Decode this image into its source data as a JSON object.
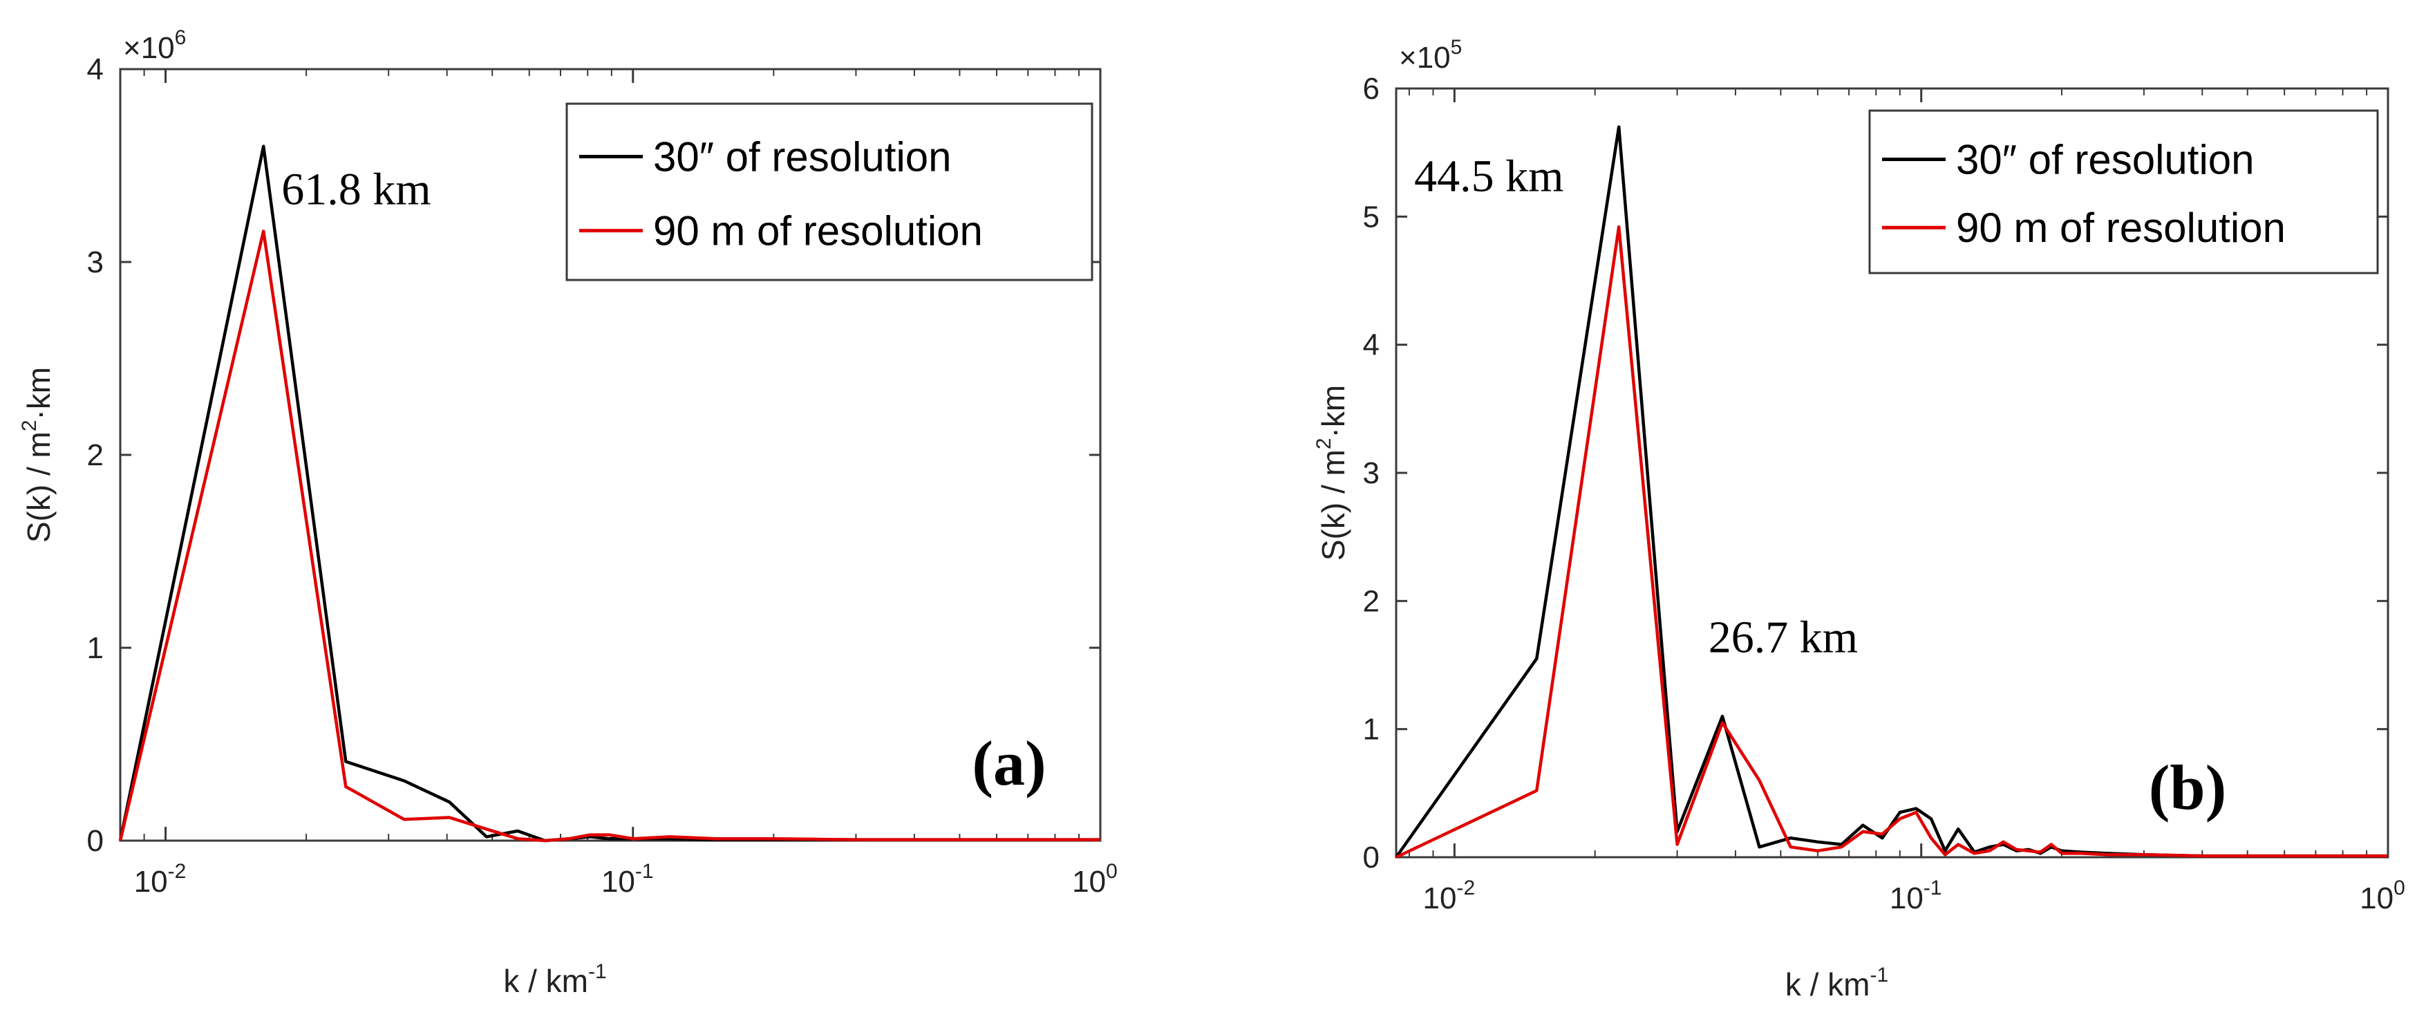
{
  "chart_data": [
    {
      "type": "line",
      "panel_label": "(a)",
      "xlabel": "k / km",
      "xlabel_sup": "-1",
      "ylabel": "S(k) / m",
      "ylabel_sup": "2",
      "ylabel_tail": "·km",
      "xscale": "log",
      "xlim": [
        0.008,
        1
      ],
      "ylim": [
        0,
        4
      ],
      "y_multiplier": "×10",
      "y_multiplier_exp": "6",
      "yticks": [
        0,
        1,
        2,
        3,
        4
      ],
      "yticklabels": [
        "0",
        "1",
        "2",
        "3",
        "4"
      ],
      "xticks": [
        0.01,
        0.1,
        1
      ],
      "xtick_base": [
        "10",
        "10",
        "10"
      ],
      "xtick_exp": [
        "-2",
        "-1",
        "0"
      ],
      "legend_position": "top-right",
      "series": [
        {
          "name": "30″ of resolution",
          "color": "#000000",
          "x": [
            0.008,
            0.0162,
            0.0243,
            0.0324,
            0.0405,
            0.0486,
            0.0567,
            0.0648,
            0.073,
            0.081,
            0.089,
            0.1,
            0.12,
            0.15,
            0.2,
            0.3,
            0.5,
            1
          ],
          "y": [
            0,
            3.6,
            0.41,
            0.31,
            0.2,
            0.02,
            0.05,
            0.0,
            0.01,
            0.02,
            0.01,
            0.01,
            0.01,
            0.005,
            0.005,
            0.005,
            0.005,
            0.005
          ]
        },
        {
          "name": "90 m of resolution",
          "color": "#e00000",
          "x": [
            0.008,
            0.0162,
            0.0243,
            0.0324,
            0.0405,
            0.0486,
            0.0567,
            0.0648,
            0.073,
            0.081,
            0.089,
            0.1,
            0.12,
            0.15,
            0.2,
            0.3,
            0.5,
            1
          ],
          "y": [
            0,
            3.16,
            0.28,
            0.11,
            0.12,
            0.06,
            0.01,
            0.0,
            0.01,
            0.03,
            0.03,
            0.01,
            0.02,
            0.01,
            0.01,
            0.005,
            0.005,
            0.005
          ]
        }
      ],
      "annotations": [
        {
          "text": "61.8 km",
          "x": 0.0177,
          "y": 3.3
        }
      ]
    },
    {
      "type": "line",
      "panel_label": "(b)",
      "xlabel": "k / km",
      "xlabel_sup": "-1",
      "ylabel": "S(k) / m",
      "ylabel_sup": "2",
      "ylabel_tail": "·km",
      "xscale": "log",
      "xlim": [
        0.0075,
        1
      ],
      "ylim": [
        0,
        6
      ],
      "y_multiplier": "×10",
      "y_multiplier_exp": "5",
      "yticks": [
        0,
        1,
        2,
        3,
        4,
        5,
        6
      ],
      "yticklabels": [
        "0",
        "1",
        "2",
        "3",
        "4",
        "5",
        "6"
      ],
      "xticks": [
        0.01,
        0.1,
        1
      ],
      "xtick_base": [
        "10",
        "10",
        "10"
      ],
      "xtick_exp": [
        "-2",
        "-1",
        "0"
      ],
      "legend_position": "top-right",
      "series": [
        {
          "name": "30″ of resolution",
          "color": "#000000",
          "x": [
            0.0075,
            0.015,
            0.0225,
            0.03,
            0.0375,
            0.045,
            0.0525,
            0.06,
            0.0675,
            0.075,
            0.0825,
            0.09,
            0.0975,
            0.105,
            0.1125,
            0.12,
            0.13,
            0.14,
            0.15,
            0.16,
            0.17,
            0.18,
            0.19,
            0.2,
            0.22,
            0.25,
            0.3,
            0.4,
            0.6,
            1
          ],
          "y": [
            0,
            1.55,
            5.7,
            0.2,
            1.1,
            0.08,
            0.15,
            0.12,
            0.1,
            0.25,
            0.15,
            0.35,
            0.38,
            0.3,
            0.05,
            0.22,
            0.04,
            0.08,
            0.1,
            0.05,
            0.06,
            0.03,
            0.08,
            0.05,
            0.04,
            0.03,
            0.02,
            0.01,
            0.01,
            0.01
          ]
        },
        {
          "name": "90 m of resolution",
          "color": "#e00000",
          "x": [
            0.0075,
            0.015,
            0.0225,
            0.03,
            0.0375,
            0.045,
            0.0525,
            0.06,
            0.0675,
            0.075,
            0.0825,
            0.09,
            0.0975,
            0.105,
            0.1125,
            0.12,
            0.13,
            0.14,
            0.15,
            0.16,
            0.17,
            0.18,
            0.19,
            0.2,
            0.22,
            0.25,
            0.3,
            0.4,
            0.6,
            1
          ],
          "y": [
            0,
            0.52,
            4.92,
            0.1,
            1.05,
            0.6,
            0.08,
            0.05,
            0.08,
            0.2,
            0.18,
            0.3,
            0.35,
            0.15,
            0.02,
            0.1,
            0.03,
            0.05,
            0.12,
            0.06,
            0.05,
            0.04,
            0.1,
            0.03,
            0.03,
            0.02,
            0.02,
            0.01,
            0.01,
            0.01
          ]
        }
      ],
      "annotations": [
        {
          "text": "44.5 km",
          "x": 0.0082,
          "y": 5.2
        },
        {
          "text": "26.7 km",
          "x": 0.035,
          "y": 1.6
        }
      ]
    }
  ]
}
